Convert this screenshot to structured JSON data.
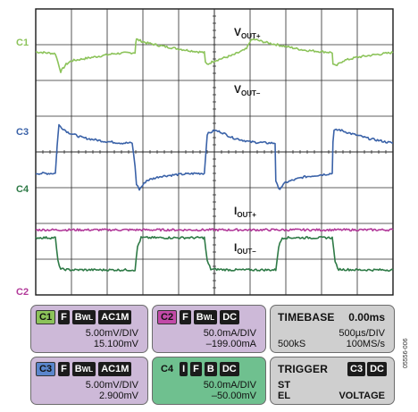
{
  "chart_data": {
    "type": "line",
    "grid": true,
    "divisions": {
      "x": 10,
      "y": 8
    },
    "channel_markers": [
      "C1",
      "C3",
      "C4",
      "C2"
    ],
    "marker_colors": {
      "C1": "#8cc35a",
      "C3": "#3a62a8",
      "C4": "#2e7a46",
      "C2": "#b23a9a"
    },
    "series": [
      {
        "name": "VOUT+",
        "label_main": "V",
        "label_sub": "OUT+",
        "color": "#8cc35a",
        "x": [
          0,
          0.55,
          0.7,
          0.85,
          1.0,
          1.6,
          2.2,
          2.78,
          2.8,
          2.82,
          3.1,
          3.6,
          4.2,
          4.72,
          4.75,
          4.8,
          5.0,
          5.5,
          5.9,
          6.0,
          6.1,
          6.5,
          7.0,
          7.5,
          8.3,
          8.32,
          8.4,
          8.6,
          9.0,
          9.5,
          10
        ],
        "y": [
          6.8,
          6.75,
          6.25,
          6.45,
          6.55,
          6.65,
          6.75,
          6.78,
          7.05,
          7.15,
          7.05,
          6.95,
          6.85,
          6.78,
          6.5,
          6.45,
          6.55,
          6.7,
          6.88,
          7.1,
          7.15,
          7.05,
          6.95,
          6.85,
          6.78,
          6.45,
          6.4,
          6.55,
          6.65,
          6.72,
          6.78
        ]
      },
      {
        "name": "VOUT-",
        "label_main": "V",
        "label_sub": "OUT–",
        "color": "#3a62a8",
        "x": [
          0,
          0.55,
          0.6,
          0.65,
          0.7,
          0.9,
          1.3,
          1.9,
          2.4,
          2.7,
          2.78,
          2.82,
          2.9,
          3.1,
          3.5,
          4.0,
          4.5,
          4.72,
          4.8,
          5.0,
          5.2,
          5.5,
          6.0,
          6.5,
          6.7,
          6.72,
          6.8,
          7.0,
          7.5,
          8.3,
          8.32,
          8.35,
          8.5,
          8.8,
          9.3,
          9.8,
          10
        ],
        "y": [
          3.4,
          3.4,
          4.2,
          4.75,
          4.7,
          4.55,
          4.4,
          4.3,
          4.25,
          4.25,
          3.6,
          3.1,
          2.95,
          3.2,
          3.32,
          3.37,
          3.4,
          3.4,
          4.5,
          4.6,
          4.55,
          4.4,
          4.28,
          4.25,
          4.25,
          3.2,
          2.95,
          3.15,
          3.3,
          3.4,
          4.3,
          4.6,
          4.62,
          4.52,
          4.38,
          4.28,
          4.25
        ]
      },
      {
        "name": "IOUT+",
        "label_main": "I",
        "label_sub": "OUT+",
        "color": "#b23a9a",
        "x": [
          0,
          10
        ],
        "y": [
          1.82,
          1.82
        ]
      },
      {
        "name": "IOUT-",
        "label_main": "I",
        "label_sub": "OUT–",
        "color": "#2e7a46",
        "x": [
          0,
          0.55,
          0.62,
          0.7,
          1.0,
          2.0,
          2.78,
          2.85,
          2.95,
          3.5,
          4.5,
          4.72,
          4.8,
          4.9,
          5.5,
          6.5,
          6.72,
          6.8,
          6.9,
          7.5,
          8.3,
          8.38,
          8.45,
          9.0,
          10
        ],
        "y": [
          1.6,
          1.6,
          0.95,
          0.72,
          0.7,
          0.7,
          0.7,
          1.35,
          1.6,
          1.6,
          1.6,
          1.6,
          0.95,
          0.72,
          0.7,
          0.7,
          0.7,
          1.35,
          1.6,
          1.6,
          1.6,
          0.95,
          0.72,
          0.7,
          0.7
        ]
      }
    ]
  },
  "panels": {
    "c1": {
      "ch": "C1",
      "f": "F",
      "bw": "B",
      "bw_sub": "WL",
      "coupling": "AC1M",
      "scale": "5.00mV/DIV",
      "offset": "15.100mV",
      "color": "#8cc35a"
    },
    "c2": {
      "ch": "C2",
      "f": "F",
      "bw": "B",
      "bw_sub": "WL",
      "coupling": "DC",
      "scale": "50.0mA/DIV",
      "offset": "–199.00mA",
      "color": "#b23a9a"
    },
    "c3": {
      "ch": "C3",
      "f": "F",
      "bw": "B",
      "bw_sub": "WL",
      "coupling": "AC1M",
      "scale": "5.00mV/DIV",
      "offset": "2.900mV",
      "color": "#3a62a8"
    },
    "c4": {
      "ch": "C4",
      "i": "I",
      "f": "F",
      "b": "B",
      "coupling": "DC",
      "scale": "50.0mA/DIV",
      "offset": "–50.00mV",
      "color": "#2e7a46"
    },
    "timebase": {
      "title": "TIMEBASE",
      "delay": "0.00ms",
      "per_div": "500µs/DIV",
      "samples": "500kS",
      "rate": "100MS/s"
    },
    "trigger": {
      "title": "TRIGGER",
      "ch": "C3",
      "coupling": "DC",
      "line2": "ST",
      "line3": "EL",
      "line3_right": "VOLTAGE"
    }
  },
  "figure_id": "05556-006"
}
